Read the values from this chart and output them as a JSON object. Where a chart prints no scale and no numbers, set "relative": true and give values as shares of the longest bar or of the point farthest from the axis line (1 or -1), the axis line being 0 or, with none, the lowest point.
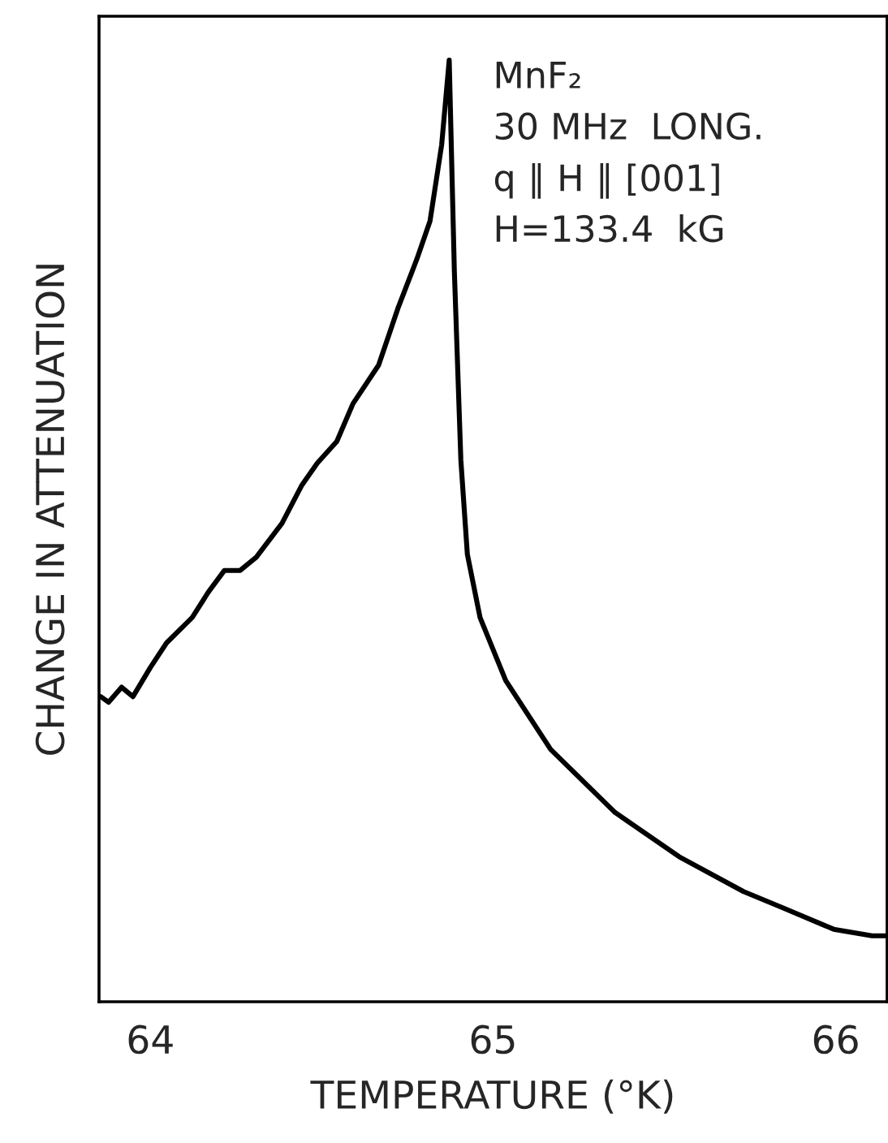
{
  "chart_data": {
    "type": "line",
    "relative": true,
    "xlabel": "TEMPERATURE (°K)",
    "ylabel": "CHANGE IN ATTENUATION",
    "annotations": [
      "MnF₂",
      "30 MHz  LONG.",
      "q ∥ H ∥ [001]",
      "H=133.4  kG"
    ],
    "xlim": [
      63.85,
      66.15
    ],
    "xticks": [
      64,
      65,
      66
    ],
    "tick_labels": "x",
    "grid": false,
    "legend": false,
    "series": [
      {
        "color": "#000000",
        "x": [
          63.855,
          63.878,
          63.916,
          63.949,
          64.0,
          64.047,
          64.122,
          64.169,
          64.216,
          64.262,
          64.309,
          64.384,
          64.441,
          64.487,
          64.544,
          64.591,
          64.666,
          64.722,
          64.778,
          64.816,
          64.85,
          64.872,
          64.887,
          64.906,
          64.925,
          64.962,
          65.037,
          65.168,
          65.356,
          65.543,
          65.731,
          65.844,
          65.994,
          66.106,
          66.15
        ],
        "values": [
          0.324,
          0.318,
          0.334,
          0.324,
          0.355,
          0.381,
          0.408,
          0.435,
          0.458,
          0.458,
          0.472,
          0.508,
          0.548,
          0.572,
          0.595,
          0.635,
          0.676,
          0.736,
          0.789,
          0.829,
          0.91,
          1.0,
          0.776,
          0.575,
          0.475,
          0.408,
          0.341,
          0.268,
          0.201,
          0.154,
          0.117,
          0.1,
          0.077,
          0.07,
          0.07
        ]
      }
    ]
  }
}
